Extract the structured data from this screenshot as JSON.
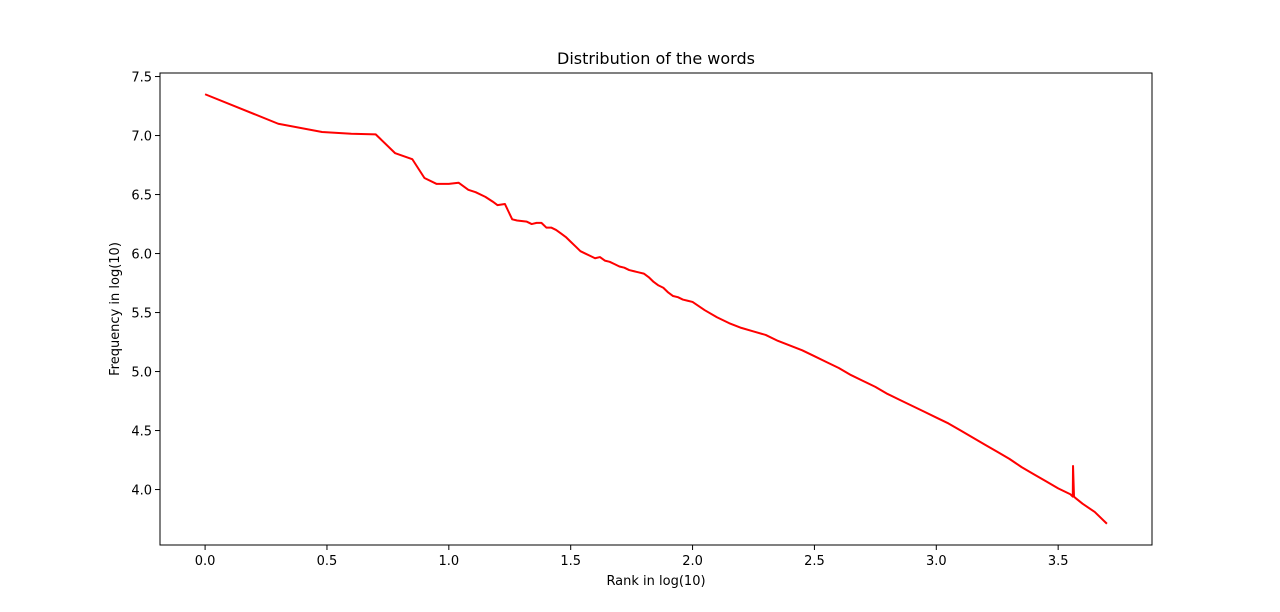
{
  "chart_data": {
    "type": "line",
    "title": "Distribution of the words",
    "xlabel": "Rank in log(10)",
    "ylabel": "Frequency in log(10)",
    "xlim": [
      -0.185,
      3.885
    ],
    "ylim": [
      3.53,
      7.53
    ],
    "xticks": [
      0.0,
      0.5,
      1.0,
      1.5,
      2.0,
      2.5,
      3.0,
      3.5
    ],
    "xtick_labels": [
      "0.0",
      "0.5",
      "1.0",
      "1.5",
      "2.0",
      "2.5",
      "3.0",
      "3.5"
    ],
    "yticks": [
      4.0,
      4.5,
      5.0,
      5.5,
      6.0,
      6.5,
      7.0,
      7.5
    ],
    "ytick_labels": [
      "4.0",
      "4.5",
      "5.0",
      "5.5",
      "6.0",
      "6.5",
      "7.0",
      "7.5"
    ],
    "grid": false,
    "color": "#ff0000",
    "series": [
      {
        "x": [
          0.0,
          0.3,
          0.48,
          0.6,
          0.7,
          0.78,
          0.85,
          0.9,
          0.95,
          1.0,
          1.04,
          1.08,
          1.11,
          1.15,
          1.18,
          1.2,
          1.23,
          1.26,
          1.28,
          1.32,
          1.34,
          1.36,
          1.38,
          1.4,
          1.42,
          1.44,
          1.46,
          1.48,
          1.5,
          1.52,
          1.54,
          1.56,
          1.58,
          1.6,
          1.62,
          1.64,
          1.66,
          1.68,
          1.7,
          1.72,
          1.74,
          1.76,
          1.78,
          1.8,
          1.82,
          1.84,
          1.86,
          1.88,
          1.9,
          1.92,
          1.94,
          1.96,
          1.98,
          2.0,
          2.05,
          2.1,
          2.15,
          2.2,
          2.25,
          2.3,
          2.35,
          2.4,
          2.45,
          2.5,
          2.55,
          2.6,
          2.65,
          2.7,
          2.75,
          2.8,
          2.85,
          2.9,
          2.95,
          3.0,
          3.05,
          3.1,
          3.15,
          3.2,
          3.25,
          3.3,
          3.35,
          3.4,
          3.45,
          3.5,
          3.55,
          3.56,
          3.561,
          3.565,
          3.57,
          3.6,
          3.65,
          3.7
        ],
        "y": [
          7.35,
          7.1,
          7.03,
          7.015,
          7.01,
          6.85,
          6.8,
          6.64,
          6.59,
          6.59,
          6.6,
          6.54,
          6.52,
          6.48,
          6.44,
          6.41,
          6.42,
          6.29,
          6.28,
          6.27,
          6.25,
          6.26,
          6.26,
          6.22,
          6.22,
          6.2,
          6.17,
          6.14,
          6.1,
          6.06,
          6.02,
          6.0,
          5.98,
          5.96,
          5.97,
          5.94,
          5.93,
          5.91,
          5.89,
          5.88,
          5.86,
          5.85,
          5.84,
          5.83,
          5.8,
          5.76,
          5.73,
          5.71,
          5.67,
          5.64,
          5.63,
          5.61,
          5.6,
          5.59,
          5.52,
          5.46,
          5.41,
          5.37,
          5.34,
          5.31,
          5.26,
          5.22,
          5.18,
          5.13,
          5.08,
          5.03,
          4.97,
          4.92,
          4.87,
          4.81,
          4.76,
          4.71,
          4.66,
          4.61,
          4.56,
          4.5,
          4.44,
          4.38,
          4.32,
          4.26,
          4.19,
          4.13,
          4.07,
          4.01,
          3.96,
          3.94,
          4.2,
          3.94,
          3.93,
          3.88,
          3.81,
          3.71
        ]
      }
    ]
  }
}
